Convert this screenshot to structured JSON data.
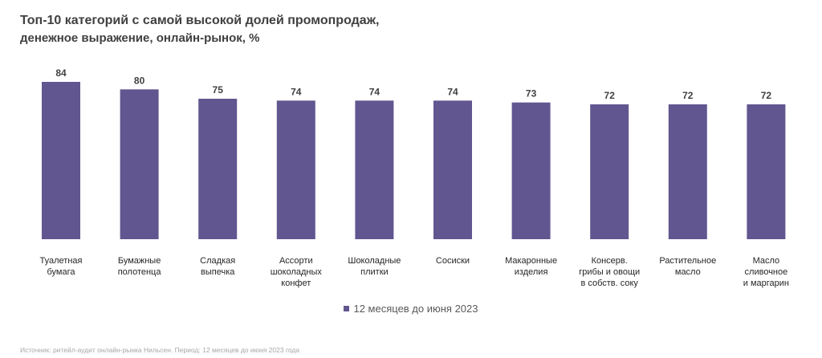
{
  "title": "Топ-10 категорий с самой высокой долей промопродаж,",
  "subtitle": "денежное выражение, онлайн-рынок, %",
  "source": "Источник: ритейл-аудит онлайн-рынка Нильсен. Период: 12 месяцев до июня 2023 года",
  "colors": {
    "bar": "#625690",
    "label": "#404040",
    "category": "#262626"
  },
  "chart_data": {
    "type": "bar",
    "title": "Топ-10 категорий с самой высокой долей промопродаж,",
    "subtitle": "денежное выражение, онлайн-рынок, %",
    "xlabel": "",
    "ylabel": "",
    "ylim": [
      0,
      84
    ],
    "grid": false,
    "legend_placement": "bottom",
    "categories": [
      [
        "Туалетная",
        "бумага"
      ],
      [
        "Бумажные",
        "полотенца"
      ],
      [
        "Сладкая",
        "выпечка"
      ],
      [
        "Ассорти",
        "шоколадных",
        "конфет"
      ],
      [
        "Шоколадные",
        "плитки"
      ],
      [
        "Сосиски"
      ],
      [
        "Макаронные",
        "изделия"
      ],
      [
        "Консерв.",
        "грибы и овощи",
        "в собств. соку"
      ],
      [
        "Растительное",
        "масло"
      ],
      [
        "Масло",
        "сливочное",
        "и маргарин"
      ]
    ],
    "series": [
      {
        "name": "12 месяцев до июня 2023",
        "values": [
          84,
          80,
          75,
          74,
          74,
          74,
          73,
          72,
          72,
          72
        ]
      }
    ]
  }
}
